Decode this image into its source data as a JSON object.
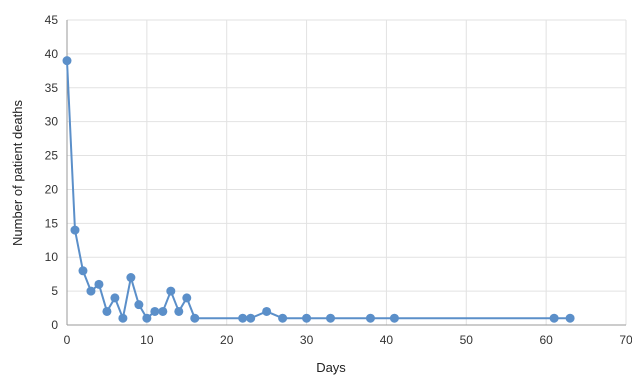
{
  "chart_data": {
    "type": "line",
    "title": "",
    "xlabel": "Days",
    "ylabel": "Number of patient deaths",
    "xlim": [
      0,
      70
    ],
    "ylim": [
      0,
      45
    ],
    "xticks": [
      0,
      10,
      20,
      30,
      40,
      50,
      60,
      70
    ],
    "yticks": [
      0,
      5,
      10,
      15,
      20,
      25,
      30,
      35,
      40,
      45
    ],
    "grid": true,
    "legend": "none",
    "series": [
      {
        "color": "#5b8fc9",
        "x": [
          0,
          1,
          2,
          3,
          4,
          5,
          6,
          7,
          8,
          9,
          10,
          11,
          12,
          13,
          14,
          15,
          16,
          22,
          23,
          25,
          27,
          30,
          33,
          38,
          41,
          61,
          63
        ],
        "y": [
          39,
          14,
          8,
          5,
          6,
          2,
          4,
          1,
          7,
          3,
          1,
          2,
          2,
          5,
          2,
          4,
          1,
          1,
          1,
          2,
          1,
          1,
          1,
          1,
          1,
          1,
          1
        ]
      }
    ]
  },
  "colors": {
    "gridline": "#e2e2e2",
    "axis": "#9a9a9a"
  }
}
